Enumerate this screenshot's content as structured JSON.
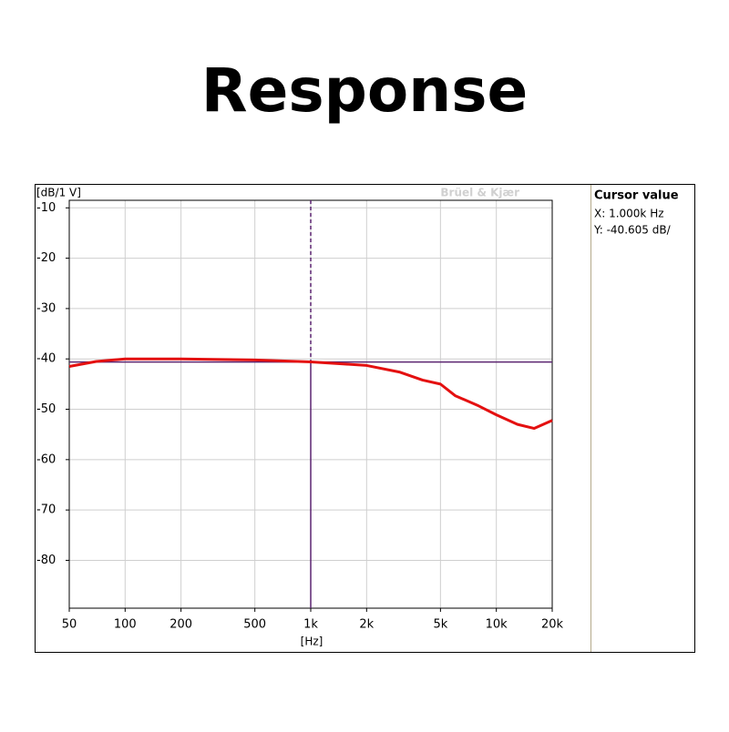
{
  "chart_data": {
    "type": "line",
    "title": "Response",
    "y_label": "[dB/1 V]",
    "x_label": "[Hz]",
    "watermark": "Brüel & Kjær",
    "x_scale": "log",
    "grid": true,
    "xlim": [
      50,
      20000
    ],
    "xticks": [
      50,
      100,
      200,
      500,
      {
        "value": 1000,
        "label": "1k"
      },
      {
        "value": 2000,
        "label": "2k"
      },
      {
        "value": 5000,
        "label": "5k"
      },
      {
        "value": 10000,
        "label": "10k"
      },
      {
        "value": 20000,
        "label": "20k"
      }
    ],
    "ylim": [
      -89.5,
      -8.5
    ],
    "yticks": [
      -10,
      -20,
      -30,
      -40,
      -50,
      -60,
      -70,
      -80
    ],
    "x": [
      50,
      70,
      100,
      200,
      500,
      1000,
      1500,
      2000,
      3000,
      4000,
      5000,
      6000,
      8000,
      10000,
      13000,
      16000,
      20000
    ],
    "series": [
      {
        "color": "#e41010",
        "values": [
          -41.5,
          -40.5,
          -40,
          -40,
          -40.2,
          -40.6,
          -41,
          -41.3,
          -42.6,
          -44.2,
          -45,
          -47.3,
          -49.3,
          -51.1,
          -53,
          -53.8,
          -52.2
        ]
      }
    ],
    "cursor": {
      "x": 1000,
      "y": -40.605,
      "color": "#5b2470"
    },
    "cursor_panel": {
      "title": "Cursor value",
      "x_text": "X:  1.000k Hz",
      "y_text": "Y:  -40.605 dB/"
    }
  }
}
